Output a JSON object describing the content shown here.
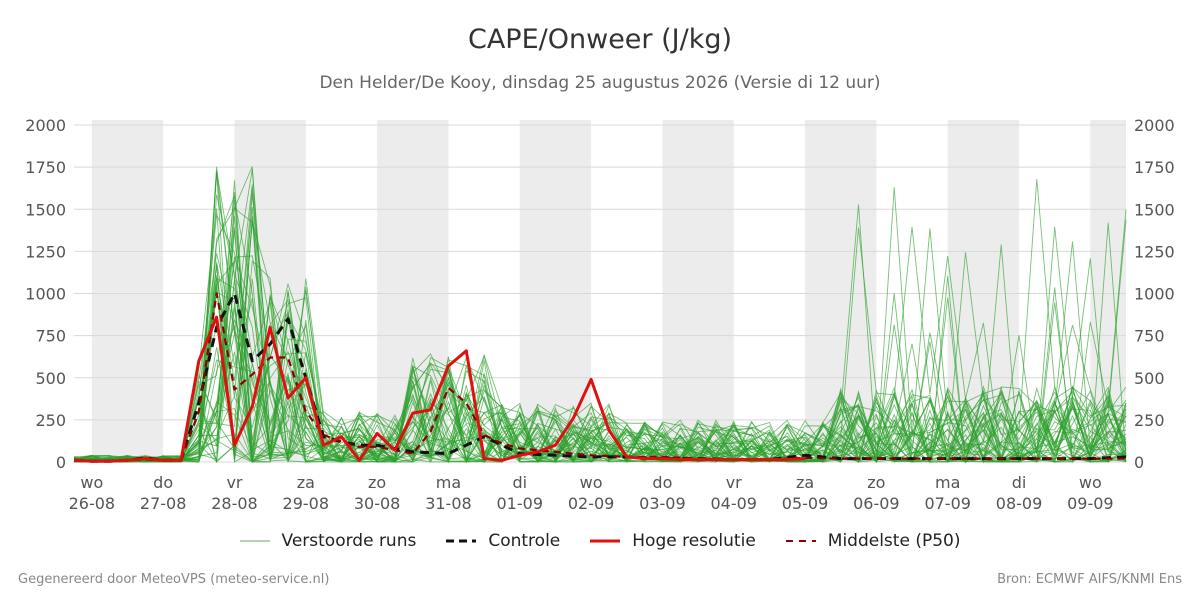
{
  "title": "CAPE/Onweer (J/kg)",
  "subtitle": "Den Helder/De Kooy, dinsdag 25 augustus 2026 (Versie di 12 uur)",
  "footer_left": "Gegenereerd door MeteoVPS (meteo-service.nl)",
  "footer_right": "Bron: ECMWF AIFS/KNMI Ens",
  "colors": {
    "ensemble": "#2ca02c",
    "control": "#111111",
    "hres": "#e01010",
    "median": "#8b0000",
    "band": "#ececec"
  },
  "legend": [
    {
      "key": "ensemble",
      "label": "Verstoorde runs"
    },
    {
      "key": "control",
      "label": "Controle"
    },
    {
      "key": "hres",
      "label": "Hoge resolutie"
    },
    {
      "key": "median",
      "label": "Middelste (P50)"
    }
  ],
  "chart_data": {
    "type": "line",
    "x_unit": "days since 26-08 00:00",
    "xlim": [
      -0.25,
      14.5
    ],
    "ylim": [
      0,
      2030
    ],
    "yticks": [
      0,
      250,
      500,
      750,
      1000,
      1250,
      1500,
      1750,
      2000
    ],
    "x_ticks": [
      {
        "x": 0,
        "day": "wo",
        "date": "26-08"
      },
      {
        "x": 1,
        "day": "do",
        "date": "27-08"
      },
      {
        "x": 2,
        "day": "vr",
        "date": "28-08"
      },
      {
        "x": 3,
        "day": "za",
        "date": "29-08"
      },
      {
        "x": 4,
        "day": "zo",
        "date": "30-08"
      },
      {
        "x": 5,
        "day": "ma",
        "date": "31-08"
      },
      {
        "x": 6,
        "day": "di",
        "date": "01-09"
      },
      {
        "x": 7,
        "day": "wo",
        "date": "02-09"
      },
      {
        "x": 8,
        "day": "do",
        "date": "03-09"
      },
      {
        "x": 9,
        "day": "vr",
        "date": "04-09"
      },
      {
        "x": 10,
        "day": "za",
        "date": "05-09"
      },
      {
        "x": 11,
        "day": "zo",
        "date": "06-09"
      },
      {
        "x": 12,
        "day": "ma",
        "date": "07-09"
      },
      {
        "x": 13,
        "day": "di",
        "date": "08-09"
      },
      {
        "x": 14,
        "day": "wo",
        "date": "09-09"
      }
    ],
    "night_bands": [
      [
        0,
        1
      ],
      [
        2,
        3
      ],
      [
        4,
        5
      ],
      [
        6,
        7
      ],
      [
        8,
        9
      ],
      [
        10,
        11
      ],
      [
        12,
        13
      ],
      [
        14,
        14.5
      ]
    ],
    "series": [
      {
        "name": "Controle",
        "style": "dashed",
        "x": [
          -0.25,
          0,
          0.25,
          0.5,
          0.75,
          1,
          1.25,
          1.5,
          1.75,
          2,
          2.25,
          2.5,
          2.75,
          3,
          3.25,
          3.5,
          3.75,
          4,
          4.5,
          5,
          5.5,
          6,
          6.5,
          7,
          7.5,
          8,
          8.5,
          9,
          9.5,
          10,
          10.5,
          11,
          11.5,
          12,
          12.5,
          13,
          13.5,
          14,
          14.5
        ],
        "y": [
          10,
          5,
          5,
          10,
          25,
          10,
          10,
          350,
          800,
          1000,
          600,
          700,
          850,
          500,
          150,
          120,
          100,
          100,
          60,
          50,
          150,
          50,
          40,
          30,
          30,
          20,
          20,
          15,
          15,
          40,
          20,
          20,
          20,
          20,
          20,
          20,
          20,
          20,
          30
        ]
      },
      {
        "name": "Hoge resolutie",
        "style": "solid",
        "x": [
          -0.25,
          0,
          0.25,
          0.5,
          0.75,
          1,
          1.25,
          1.5,
          1.75,
          2,
          2.25,
          2.5,
          2.75,
          3,
          3.25,
          3.5,
          3.75,
          4,
          4.25,
          4.5,
          4.75,
          5,
          5.25,
          5.5,
          5.75,
          6,
          6.25,
          6.5,
          6.75,
          7,
          7.25,
          7.5,
          7.75,
          8,
          8.25,
          8.5,
          8.75,
          9,
          9.25,
          9.5,
          9.75,
          10
        ],
        "y": [
          10,
          5,
          5,
          10,
          20,
          10,
          10,
          600,
          860,
          100,
          330,
          800,
          380,
          500,
          100,
          150,
          10,
          170,
          70,
          290,
          310,
          570,
          660,
          20,
          10,
          40,
          60,
          100,
          260,
          490,
          190,
          30,
          20,
          20,
          15,
          15,
          15,
          15,
          15,
          15,
          15,
          20
        ]
      },
      {
        "name": "Middelste (P50)",
        "style": "dashed",
        "x": [
          -0.25,
          0,
          0.25,
          0.5,
          0.75,
          1,
          1.25,
          1.5,
          1.75,
          2,
          2.25,
          2.5,
          2.75,
          3,
          3.25,
          3.5,
          3.75,
          4,
          4.25,
          4.5,
          4.75,
          5,
          5.25,
          5.5,
          5.75,
          6,
          6.5,
          7,
          7.5,
          8,
          8.5,
          9,
          9.5,
          10,
          10.5,
          11,
          11.5,
          12,
          12.5,
          13,
          13.5,
          14,
          14.5
        ],
        "y": [
          10,
          5,
          5,
          10,
          15,
          10,
          10,
          300,
          1000,
          430,
          520,
          620,
          620,
          300,
          160,
          120,
          90,
          90,
          70,
          50,
          180,
          440,
          350,
          160,
          110,
          80,
          60,
          40,
          30,
          30,
          20,
          15,
          15,
          25,
          20,
          20,
          20,
          20,
          20,
          20,
          20,
          20,
          20
        ]
      }
    ]
  }
}
